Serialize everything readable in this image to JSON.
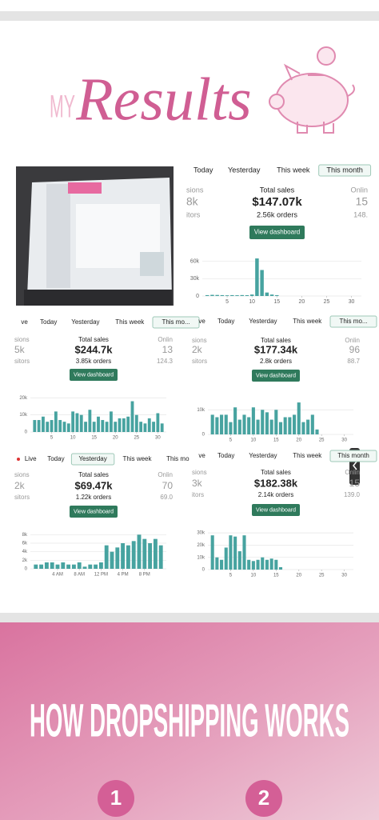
{
  "header": {
    "prefix": "MY",
    "title": "Results"
  },
  "panels": [
    {
      "tabs": [
        "Today",
        "Yesterday",
        "This week",
        "This month"
      ],
      "active_tab": 3,
      "left_stats": [
        "sions",
        "8k",
        "itors"
      ],
      "right_stats": [
        "Onlin",
        "15",
        "148."
      ],
      "total_label": "Total sales",
      "total": "$147.07k",
      "orders": "2.56k orders",
      "button": "View dashboard",
      "chart": {
        "x": [
          1,
          2,
          3,
          4,
          5,
          6,
          7,
          8,
          9,
          10,
          11,
          12,
          13,
          14,
          15
        ],
        "values": [
          1500,
          2000,
          1800,
          1500,
          1200,
          1500,
          1300,
          1600,
          1400,
          2500,
          65000,
          45000,
          6000,
          2500,
          1500
        ],
        "xlim": [
          0,
          32
        ],
        "xticks": [
          5,
          10,
          15,
          20,
          25,
          30
        ],
        "ylim": [
          0,
          72000
        ],
        "yticks": [
          0,
          {
            "value": 30000,
            "label": "30k"
          },
          {
            "value": 60000,
            "label": "60k"
          }
        ]
      }
    },
    {
      "tabs": [
        "ve",
        "Today",
        "Yesterday",
        "This week",
        "This mo..."
      ],
      "active_tab": 4,
      "left_stats": [
        "sions",
        "5k",
        "sitors"
      ],
      "right_stats": [
        "Onlin",
        "13",
        "124.3"
      ],
      "total_label": "Total sales",
      "total": "$244.7k",
      "orders": "3.85k orders",
      "button": "View dashboard",
      "chart": {
        "x": [
          1,
          2,
          3,
          4,
          5,
          6,
          7,
          8,
          9,
          10,
          11,
          12,
          13,
          14,
          15,
          16,
          17,
          18,
          19,
          20,
          21,
          22,
          23,
          24,
          25,
          26,
          27,
          28,
          29,
          30,
          31
        ],
        "values": [
          7000,
          7000,
          9000,
          6000,
          7000,
          12000,
          7000,
          6000,
          5000,
          12000,
          11000,
          10000,
          6000,
          13000,
          6000,
          9000,
          7000,
          6000,
          12000,
          6000,
          8000,
          8000,
          9000,
          18000,
          10000,
          6000,
          5000,
          8000,
          6000,
          11000,
          5000
        ],
        "xlim": [
          0,
          32
        ],
        "xticks": [
          5,
          10,
          15,
          20,
          25,
          30
        ],
        "ylim": [
          0,
          22000
        ],
        "yticks": [
          0,
          {
            "value": 10000,
            "label": "10k"
          },
          {
            "value": 20000,
            "label": "20k"
          }
        ]
      }
    },
    {
      "tabs": [
        "ve",
        "Today",
        "Yesterday",
        "This week",
        "This mo..."
      ],
      "active_tab": 4,
      "left_stats": [
        "sions",
        "2k",
        "sitors"
      ],
      "right_stats": [
        "Onlin",
        "96",
        "88.7"
      ],
      "total_label": "Total sales",
      "total": "$177.34k",
      "orders": "2.8k orders",
      "button": "View dashboard",
      "chart": {
        "x": [
          1,
          2,
          3,
          4,
          5,
          6,
          7,
          8,
          9,
          10,
          11,
          12,
          13,
          14,
          15,
          16,
          17,
          18,
          19,
          20,
          21,
          22,
          23,
          24
        ],
        "values": [
          8000,
          7000,
          8000,
          8000,
          5000,
          11000,
          6000,
          8000,
          7000,
          11000,
          6000,
          10000,
          9000,
          6000,
          10000,
          5000,
          7000,
          7000,
          8000,
          13000,
          5000,
          6000,
          8000,
          2000
        ],
        "xlim": [
          0,
          32
        ],
        "xticks": [
          5,
          10,
          15,
          20,
          25,
          30
        ],
        "ylim": [
          0,
          14000
        ],
        "yticks": [
          0,
          {
            "value": 10000,
            "label": "10k"
          }
        ]
      }
    },
    {
      "tabs": [
        "Live",
        "Today",
        "Yesterday",
        "This week",
        "This mo"
      ],
      "active_tab": 2,
      "left_stats": [
        "sions",
        "2k",
        "sitors"
      ],
      "right_stats": [
        "Onlin",
        "70",
        "69.0"
      ],
      "total_label": "Total sales",
      "total": "$69.47k",
      "orders": "1.22k orders",
      "button": "View dashboard",
      "chart": {
        "x": [
          0,
          1,
          2,
          3,
          4,
          5,
          6,
          7,
          8,
          9,
          10,
          11,
          12,
          13,
          14,
          15,
          16,
          17,
          18,
          19,
          20,
          21,
          22,
          23
        ],
        "values": [
          1000,
          1000,
          1500,
          1500,
          1000,
          1500,
          1000,
          1000,
          1500,
          500,
          1000,
          1000,
          1500,
          5500,
          4000,
          5000,
          6000,
          5500,
          6500,
          8000,
          7000,
          6000,
          7000,
          5500
        ],
        "xlim": [
          -1,
          24
        ],
        "xticks": [
          {
            "value": 4,
            "label": "4 AM"
          },
          {
            "value": 8,
            "label": "8 AM"
          },
          {
            "value": 12,
            "label": "12 PM"
          },
          {
            "value": 16,
            "label": "4 PM"
          },
          {
            "value": 20,
            "label": "8 PM"
          }
        ],
        "ylim": [
          0,
          9000
        ],
        "yticks": [
          0,
          {
            "value": 2000,
            "label": "2k"
          },
          {
            "value": 4000,
            "label": "4k"
          },
          {
            "value": 6000,
            "label": "6k"
          },
          {
            "value": 8000,
            "label": "8k"
          }
        ]
      }
    },
    {
      "tabs": [
        "ve",
        "Today",
        "Yesterday",
        "This week",
        "This month"
      ],
      "active_tab": 4,
      "left_stats": [
        "sions",
        "3k",
        "itors"
      ],
      "right_stats": [
        "Onlin",
        "15",
        "139.0"
      ],
      "total_label": "Total sales",
      "total": "$182.38k",
      "orders": "2.14k orders",
      "button": "View dashboard",
      "chart": {
        "x": [
          1,
          2,
          3,
          4,
          5,
          6,
          7,
          8,
          9,
          10,
          11,
          12,
          13,
          14,
          15,
          16
        ],
        "values": [
          28000,
          10000,
          8000,
          18000,
          28000,
          27000,
          15000,
          28000,
          8000,
          7000,
          8000,
          10000,
          8000,
          9000,
          8000,
          2000
        ],
        "xlim": [
          0,
          32
        ],
        "xticks": [
          5,
          10,
          15,
          20,
          25,
          30
        ],
        "ylim": [
          0,
          34000
        ],
        "yticks": [
          0,
          {
            "value": 10000,
            "label": "10k"
          },
          {
            "value": 20000,
            "label": "20k"
          },
          {
            "value": 30000,
            "label": "30k"
          }
        ]
      }
    }
  ],
  "banner": {
    "title": "HOW DROPSHIPPING WORKS",
    "steps": [
      "1",
      "2"
    ]
  }
}
